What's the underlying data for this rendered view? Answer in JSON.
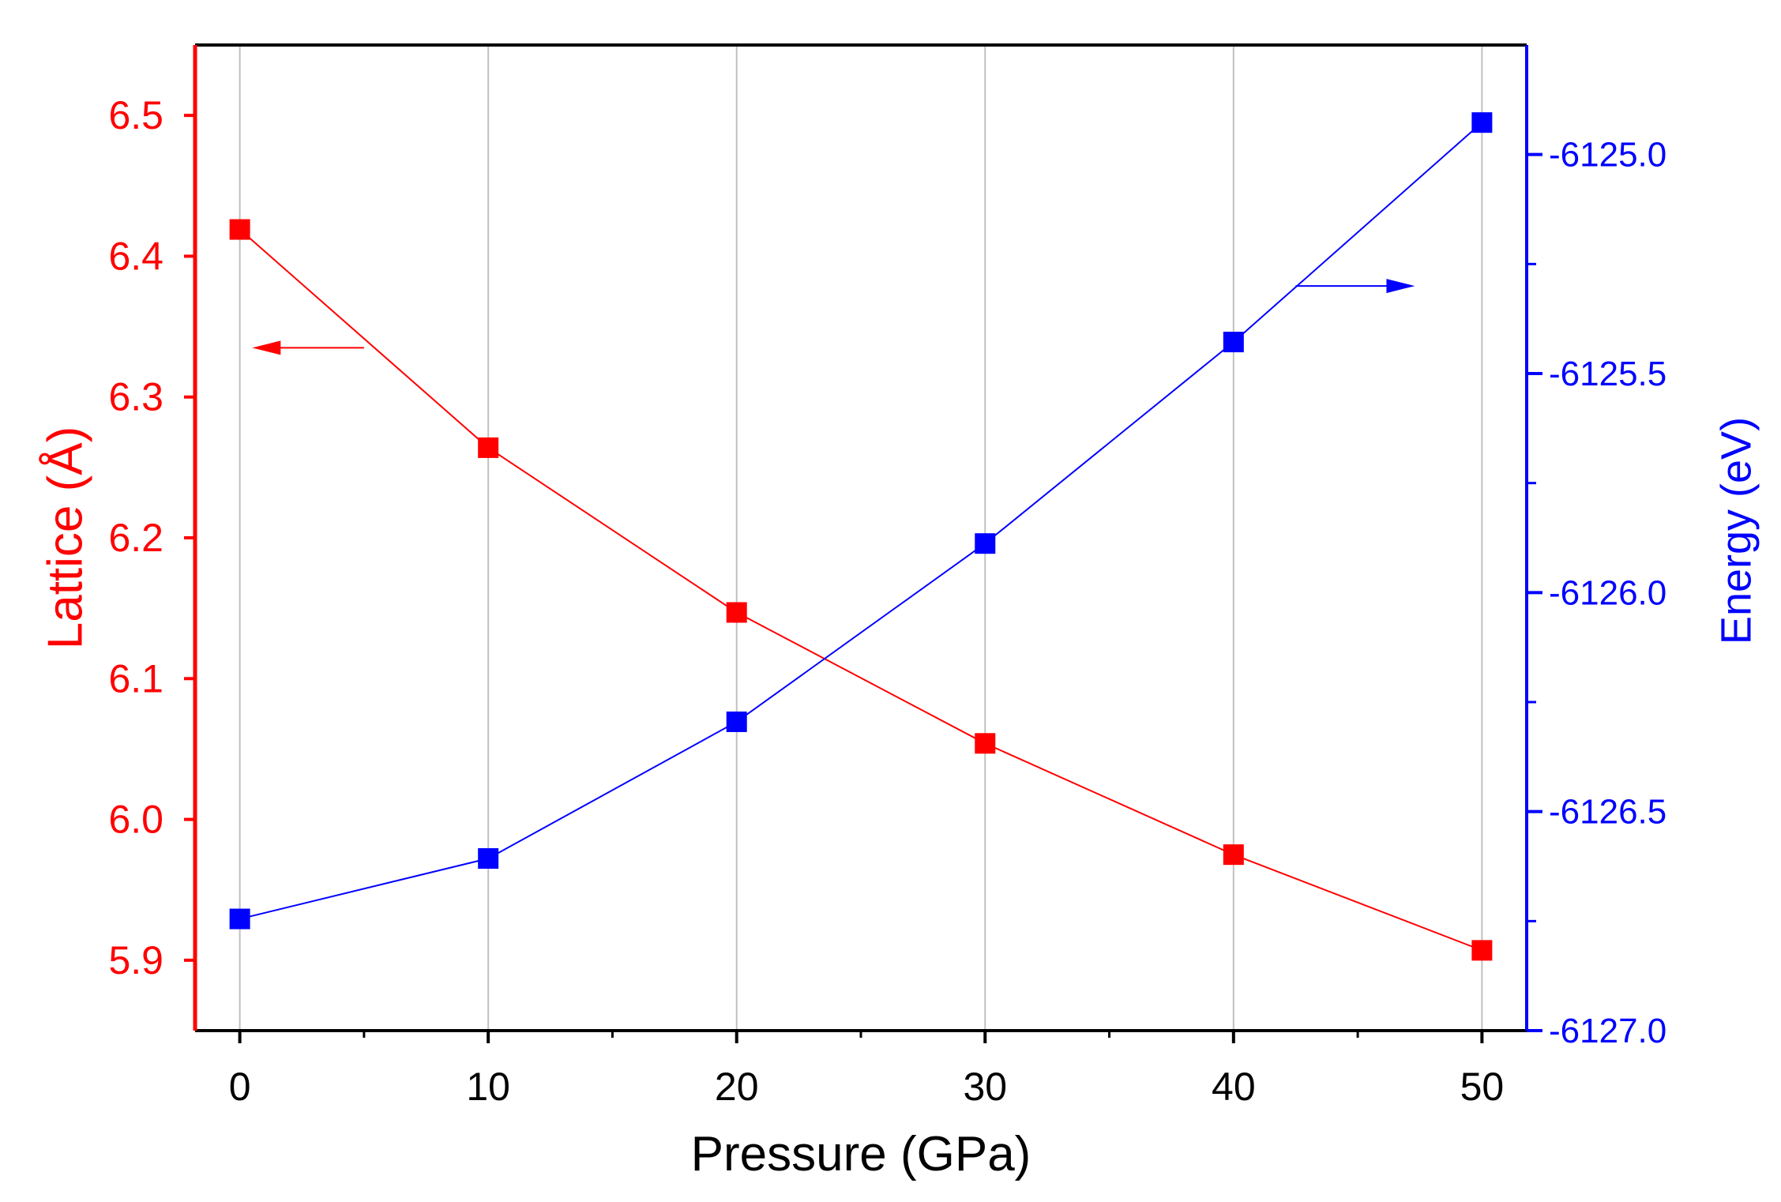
{
  "chart_data": {
    "type": "line",
    "x": [
      0,
      10,
      20,
      30,
      40,
      50
    ],
    "xlabel": "Pressure (GPa)",
    "xlim": [
      -1.8,
      51.8
    ],
    "xticks": [
      0,
      10,
      20,
      30,
      40,
      50
    ],
    "xtick_labels": [
      "0",
      "10",
      "20",
      "30",
      "40",
      "50"
    ],
    "grid": "vertical",
    "series": [
      {
        "name": "Lattice",
        "axis": "left",
        "color": "#ff0000",
        "marker": "square",
        "values": [
          6.419,
          6.264,
          6.147,
          6.054,
          5.975,
          5.907
        ]
      },
      {
        "name": "Energy",
        "axis": "right",
        "color": "#0000ff",
        "marker": "square",
        "values": [
          -6126.745,
          -6126.607,
          -6126.295,
          -6125.888,
          -6125.428,
          -6124.927
        ]
      }
    ],
    "left_axis": {
      "label": "Lattice (Å)",
      "color": "#ff0000",
      "ylim": [
        5.85,
        6.55
      ],
      "ticks": [
        5.9,
        6.0,
        6.1,
        6.2,
        6.3,
        6.4,
        6.5
      ],
      "tick_labels": [
        "5.9",
        "6.0",
        "6.1",
        "6.2",
        "6.3",
        "6.4",
        "6.5"
      ]
    },
    "right_axis": {
      "label": "Energy (eV)",
      "color": "#0000ff",
      "ylim": [
        -6127.0,
        -6124.75
      ],
      "ticks": [
        -6127.0,
        -6126.5,
        -6126.0,
        -6125.5,
        -6125.0
      ],
      "tick_labels": [
        "-6127.0",
        "-6126.5",
        "-6126.0",
        "-6125.5",
        "-6125.0"
      ],
      "minor_ticks": [
        -6126.75,
        -6126.25,
        -6125.75,
        -6125.25
      ]
    },
    "annotations": [
      {
        "type": "arrow",
        "series": "Lattice",
        "direction": "left",
        "from": [
          5.0,
          6.335
        ],
        "to": [
          0.5,
          6.335
        ]
      },
      {
        "type": "arrow",
        "series": "Energy",
        "direction": "right",
        "from": [
          42.5,
          -6125.3
        ],
        "to": [
          47.3,
          -6125.3
        ]
      }
    ]
  }
}
